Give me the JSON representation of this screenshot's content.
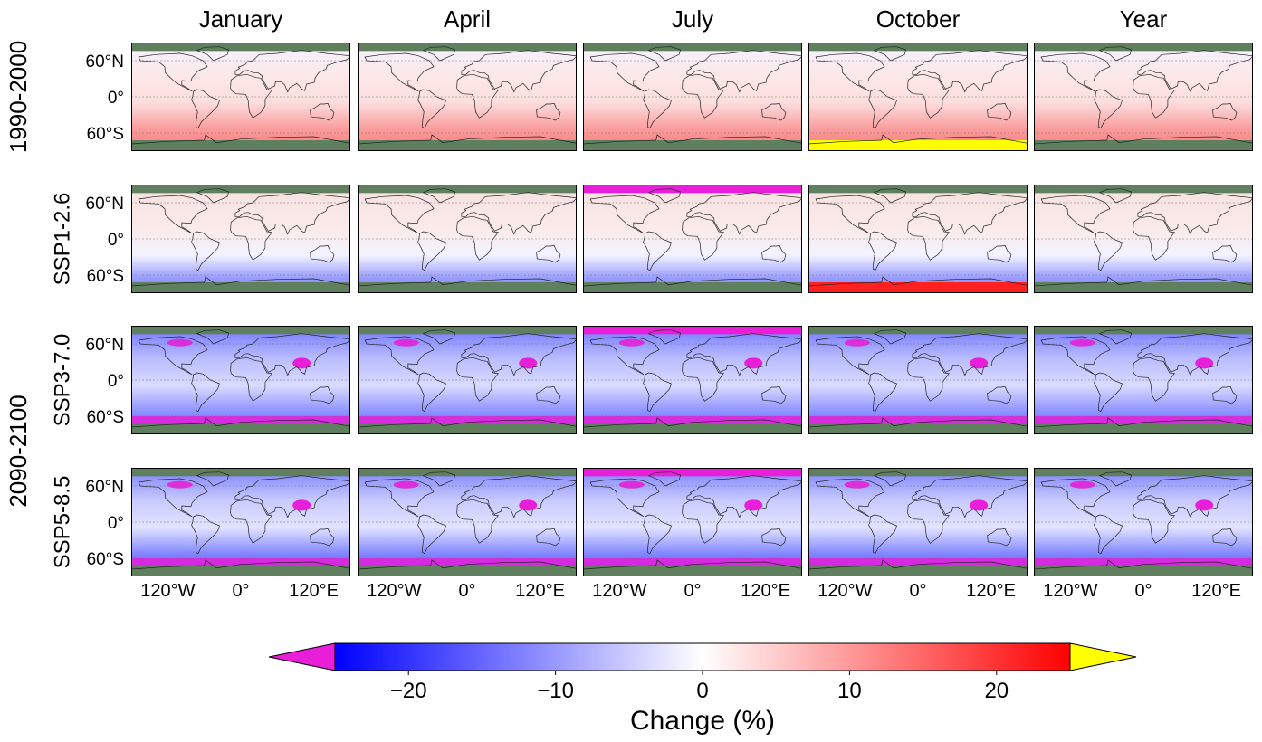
{
  "chart_data": {
    "type": "heatmap",
    "description_kind": "small-multiple map grid",
    "columns": [
      "January",
      "April",
      "July",
      "October",
      "Year"
    ],
    "period_groups": [
      {
        "label": "1990-2000",
        "rows": [
          0
        ]
      },
      {
        "label": "2090-2100",
        "rows": [
          2,
          3
        ]
      }
    ],
    "rows": [
      {
        "label": "",
        "style": "historical"
      },
      {
        "label": "SSP1-2.6",
        "style": "ssp126"
      },
      {
        "label": "SSP3-7.0",
        "style": "ssp370"
      },
      {
        "label": "SSP5-8.5",
        "style": "ssp585"
      }
    ],
    "lat_ticks": [
      {
        "value": 60,
        "label": "60°N"
      },
      {
        "value": 0,
        "label": "0°"
      },
      {
        "value": -60,
        "label": "60°S"
      }
    ],
    "lon_ticks": [
      {
        "value": -120,
        "label": "120°W"
      },
      {
        "value": 0,
        "label": "0°"
      },
      {
        "value": 120,
        "label": "120°E"
      }
    ],
    "map_extent": {
      "lon": [
        -180,
        180
      ],
      "lat": [
        -90,
        90
      ]
    },
    "colorbar": {
      "label": "Change (%)",
      "range": [
        -25,
        25
      ],
      "ticks": [
        {
          "value": -20,
          "label": "−20"
        },
        {
          "value": -10,
          "label": "−10"
        },
        {
          "value": 0,
          "label": "0"
        },
        {
          "value": 10,
          "label": "10"
        },
        {
          "value": 20,
          "label": "20"
        }
      ],
      "extend": "both",
      "under_color": "#e81ed9",
      "over_color": "#ffff00",
      "colors": [
        "#0000ff",
        "#ffffff",
        "#ff0000"
      ],
      "no_data_color": "#5f7f5f"
    }
  }
}
